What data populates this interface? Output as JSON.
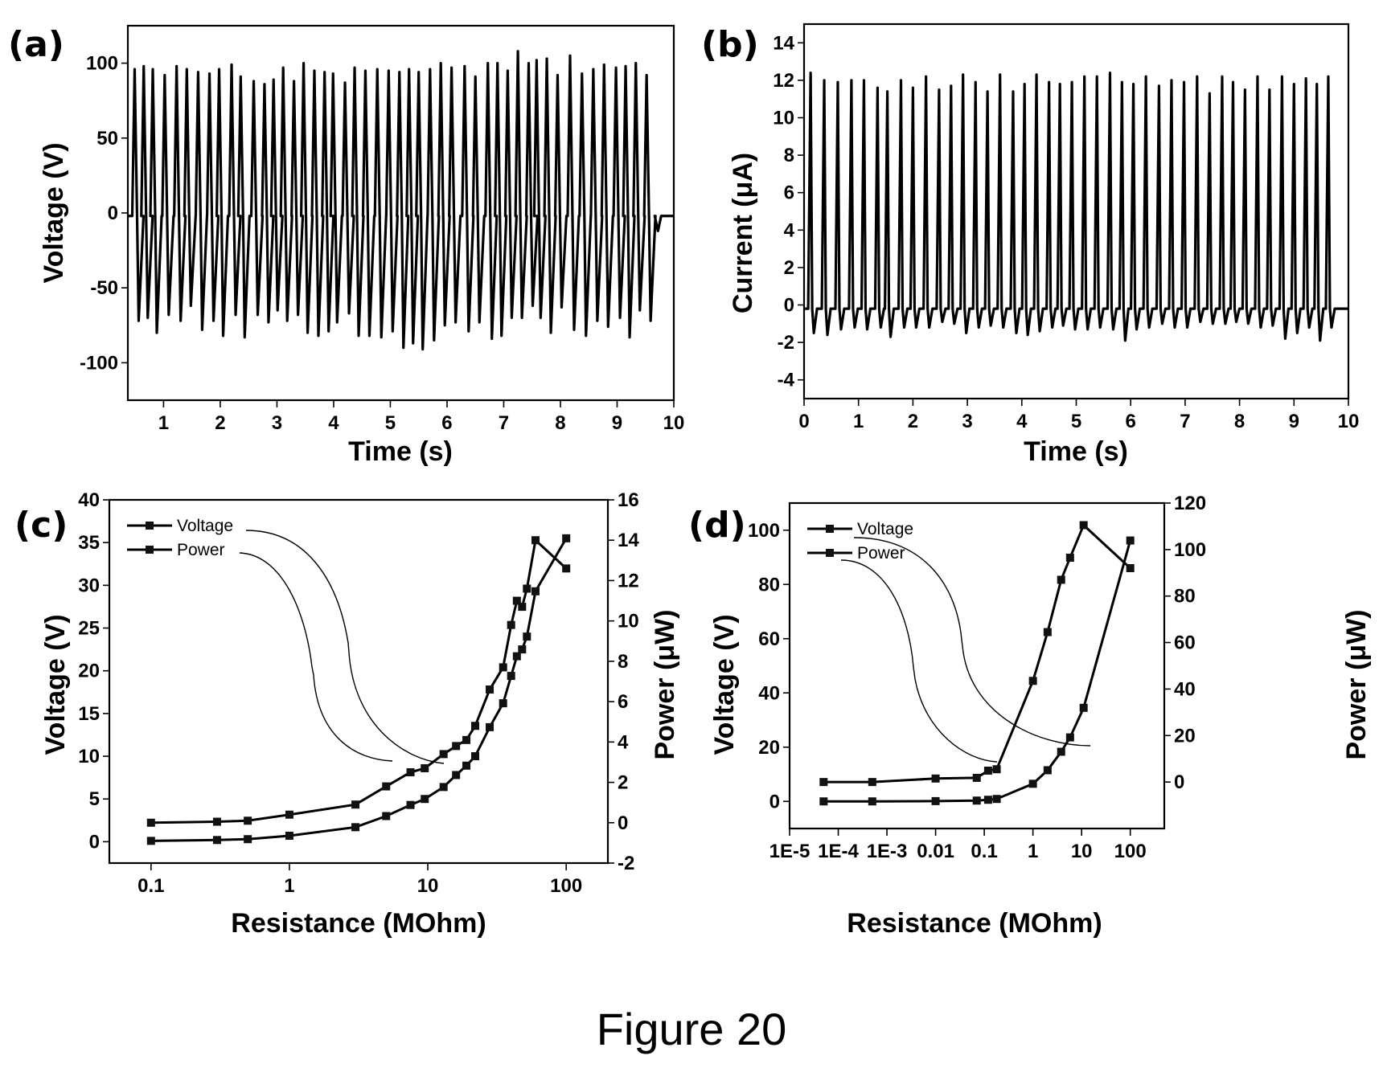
{
  "figure_caption": "Figure 20",
  "chart_data": [
    {
      "id": "a",
      "panel_label": "(a)",
      "type": "line",
      "title": "",
      "xlabel": "Time (s)",
      "ylabel": "Voltage (V)",
      "xlim": [
        0.37,
        10
      ],
      "ylim": [
        -125,
        125
      ],
      "xticks": [
        "1",
        "2",
        "3",
        "4",
        "5",
        "6",
        "7",
        "8",
        "9",
        "10"
      ],
      "xtick_values": [
        1,
        2,
        3,
        4,
        5,
        6,
        7,
        8,
        9,
        10
      ],
      "yticks": [
        "100",
        "50",
        "0",
        "-50",
        "-100"
      ],
      "ytick_values": [
        100,
        50,
        0,
        -50,
        -100
      ],
      "baseline": -2,
      "description": "Periodic voltage pulses: 40 positive peaks (~87–108 V) each followed by a negative peak (~-62 to -91 V)",
      "pulse_times": [
        0.49,
        0.65,
        0.81,
        1.02,
        1.23,
        1.41,
        1.61,
        1.81,
        1.98,
        2.2,
        2.36,
        2.59,
        2.78,
        2.94,
        3.11,
        3.3,
        3.47,
        3.66,
        3.84,
        3.99,
        4.2,
        4.37,
        4.56,
        4.77,
        4.97,
        5.16,
        5.33,
        5.5,
        5.7,
        5.89,
        6.08,
        6.31,
        6.5,
        6.72,
        6.89,
        7.07,
        7.25,
        7.44,
        7.58,
        7.76,
        7.95,
        8.17,
        8.38,
        8.58,
        8.77,
        8.98,
        9.15,
        9.33,
        9.52
      ],
      "positive_peaks": [
        96,
        98,
        96,
        92,
        98,
        96,
        94,
        93,
        96,
        99,
        91,
        88,
        86,
        89,
        97,
        88,
        100,
        95,
        94,
        93,
        87,
        97,
        95,
        96,
        95,
        94,
        96,
        94,
        96,
        100,
        97,
        98,
        91,
        100,
        100,
        95,
        108,
        100,
        102,
        103,
        92,
        105,
        93,
        96,
        99,
        97,
        98,
        100,
        92
      ],
      "negative_peaks": [
        -72,
        -70,
        -80,
        -68,
        -72,
        -62,
        -78,
        -72,
        -82,
        -68,
        -83,
        -68,
        -73,
        -65,
        -72,
        -68,
        -80,
        -82,
        -79,
        -73,
        -67,
        -82,
        -82,
        -83,
        -79,
        -90,
        -87,
        -91,
        -85,
        -75,
        -73,
        -79,
        -73,
        -84,
        -82,
        -70,
        -70,
        -62,
        -70,
        -80,
        -63,
        -78,
        -82,
        -72,
        -76,
        -70,
        -83,
        -65,
        -72
      ],
      "tail_dip": {
        "time": 9.72,
        "value": -12
      }
    },
    {
      "id": "b",
      "panel_label": "(b)",
      "type": "line",
      "title": "",
      "xlabel": "Time (s)",
      "ylabel": "Current (μA)",
      "xlim": [
        0,
        10
      ],
      "ylim": [
        -5,
        15
      ],
      "xticks": [
        "0",
        "1",
        "2",
        "3",
        "4",
        "5",
        "6",
        "7",
        "8",
        "9",
        "10"
      ],
      "xtick_values": [
        0,
        1,
        2,
        3,
        4,
        5,
        6,
        7,
        8,
        9,
        10
      ],
      "yticks": [
        "14",
        "12",
        "10",
        "8",
        "6",
        "4",
        "2",
        "0",
        "-2",
        "-4"
      ],
      "ytick_values": [
        14,
        12,
        10,
        8,
        6,
        4,
        2,
        0,
        -2,
        -4
      ],
      "baseline": -0.2,
      "description": "Periodic current pulses: ~40 positive peaks (~11.3–12.4 μA) with negative dips (~-0.8 to -1.9 μA)",
      "pulse_times": [
        0.12,
        0.37,
        0.62,
        0.87,
        1.1,
        1.35,
        1.53,
        1.78,
        2.0,
        2.24,
        2.48,
        2.7,
        2.92,
        3.15,
        3.37,
        3.6,
        3.84,
        4.05,
        4.27,
        4.5,
        4.7,
        4.92,
        5.15,
        5.38,
        5.62,
        5.84,
        6.05,
        6.28,
        6.52,
        6.75,
        6.98,
        7.22,
        7.45,
        7.68,
        7.88,
        8.1,
        8.33,
        8.55,
        8.78,
        9.0,
        9.22,
        9.42,
        9.63
      ],
      "positive_peaks": [
        12.4,
        12.0,
        11.9,
        12.0,
        12.0,
        11.6,
        11.4,
        12.0,
        11.6,
        12.2,
        11.5,
        11.7,
        12.3,
        11.9,
        11.4,
        12.3,
        11.4,
        11.8,
        12.3,
        11.9,
        11.8,
        11.9,
        12.2,
        12.2,
        12.4,
        11.9,
        11.8,
        12.2,
        11.7,
        12.0,
        11.9,
        12.2,
        11.3,
        12.2,
        11.9,
        11.5,
        12.2,
        11.5,
        12.2,
        11.8,
        12.1,
        11.8,
        12.2
      ],
      "negative_peaks": [
        -1.5,
        -1.6,
        -1.3,
        -1.2,
        -1.3,
        -1.2,
        -1.7,
        -1.2,
        -1.2,
        -1.2,
        -0.9,
        -1.0,
        -1.5,
        -1.2,
        -1.1,
        -1.2,
        -1.5,
        -1.6,
        -1.4,
        -1.2,
        -1.1,
        -1.3,
        -1.3,
        -1.2,
        -1.3,
        -1.9,
        -1.3,
        -1.2,
        -1.0,
        -1.2,
        -1.2,
        -0.9,
        -1.0,
        -1.0,
        -0.9,
        -1.0,
        -1.2,
        -1.1,
        -1.8,
        -1.5,
        -1.2,
        -1.9,
        -1.2
      ]
    },
    {
      "id": "c",
      "panel_label": "(c)",
      "type": "line",
      "title": "",
      "xlabel": "Resistance (MOhm)",
      "ylabel": "Voltage (V)",
      "y2label": "Power (μW)",
      "xscale": "log",
      "xlim": [
        0.05,
        200
      ],
      "ylim": [
        -2.5,
        40
      ],
      "y2lim": [
        -2,
        16
      ],
      "xticks": [
        "0.1",
        "1",
        "10",
        "100"
      ],
      "xtick_values": [
        0.1,
        1,
        10,
        100
      ],
      "yticks": [
        "40",
        "35",
        "30",
        "25",
        "20",
        "15",
        "10",
        "5",
        "0"
      ],
      "ytick_values": [
        40,
        35,
        30,
        25,
        20,
        15,
        10,
        5,
        0
      ],
      "y2ticks": [
        "16",
        "14",
        "12",
        "10",
        "8",
        "6",
        "4",
        "2",
        "0",
        "-2"
      ],
      "y2tick_values": [
        16,
        14,
        12,
        10,
        8,
        6,
        4,
        2,
        0,
        -2
      ],
      "legend": [
        "Voltage",
        "Power"
      ],
      "legend_position": "top-left",
      "series": [
        {
          "name": "Voltage",
          "axis": "left",
          "x": [
            0.1,
            0.3,
            0.5,
            1,
            3,
            5,
            7.5,
            9.5,
            13,
            16,
            19,
            22,
            28,
            35,
            40,
            44,
            48,
            52,
            60,
            100
          ],
          "y": [
            0.1,
            0.2,
            0.3,
            0.7,
            1.7,
            3.0,
            4.3,
            5.0,
            6.4,
            7.8,
            8.9,
            10.0,
            13.4,
            16.2,
            19.4,
            21.7,
            22.5,
            24.0,
            29.3,
            35.5
          ]
        },
        {
          "name": "Power",
          "axis": "right",
          "x": [
            0.1,
            0.3,
            0.5,
            1,
            3,
            5,
            7.5,
            9.5,
            13,
            16,
            19,
            22,
            28,
            35,
            40,
            44,
            48,
            52,
            60,
            100
          ],
          "y": [
            0.0,
            0.05,
            0.1,
            0.4,
            0.9,
            1.8,
            2.5,
            2.7,
            3.4,
            3.8,
            4.1,
            4.8,
            6.6,
            7.7,
            9.8,
            11.0,
            10.7,
            11.6,
            14.0,
            12.6
          ]
        }
      ]
    },
    {
      "id": "d",
      "panel_label": "(d)",
      "type": "line",
      "title": "",
      "xlabel": "Resistance (MOhm)",
      "ylabel": "Voltage (V)",
      "y2label": "Power (μW)",
      "xscale": "log",
      "xlim": [
        1e-05,
        500
      ],
      "ylim": [
        -10,
        110
      ],
      "y2lim": [
        -20,
        120
      ],
      "xticks": [
        "1E-5",
        "1E-4",
        "1E-3",
        "0.01",
        "0.1",
        "1",
        "10",
        "100"
      ],
      "xtick_values": [
        1e-05,
        0.0001,
        0.001,
        0.01,
        0.1,
        1,
        10,
        100
      ],
      "yticks": [
        "100",
        "80",
        "60",
        "40",
        "20",
        "0"
      ],
      "ytick_values": [
        100,
        80,
        60,
        40,
        20,
        0
      ],
      "y2ticks": [
        "120",
        "100",
        "80",
        "60",
        "40",
        "20",
        "0"
      ],
      "y2tick_values": [
        120,
        100,
        80,
        60,
        40,
        20,
        0
      ],
      "legend": [
        "Voltage",
        "Power"
      ],
      "legend_position": "top-left",
      "series": [
        {
          "name": "Voltage",
          "axis": "left",
          "x": [
            5e-05,
            0.0005,
            0.01,
            0.07,
            0.12,
            0.18,
            1,
            2,
            3.8,
            5.8,
            11,
            100
          ],
          "y": [
            0.0,
            0.0,
            0.1,
            0.3,
            0.6,
            0.9,
            6.5,
            11.5,
            18.3,
            23.6,
            34.5,
            96.2
          ]
        },
        {
          "name": "Power",
          "axis": "right",
          "x": [
            5e-05,
            0.0005,
            0.01,
            0.07,
            0.12,
            0.18,
            1,
            2,
            3.8,
            5.8,
            11,
            100
          ],
          "y": [
            0.0,
            0.0,
            1.5,
            1.8,
            4.9,
            5.5,
            43.5,
            64.5,
            87.0,
            96.5,
            110.5,
            92.0
          ]
        }
      ]
    }
  ]
}
